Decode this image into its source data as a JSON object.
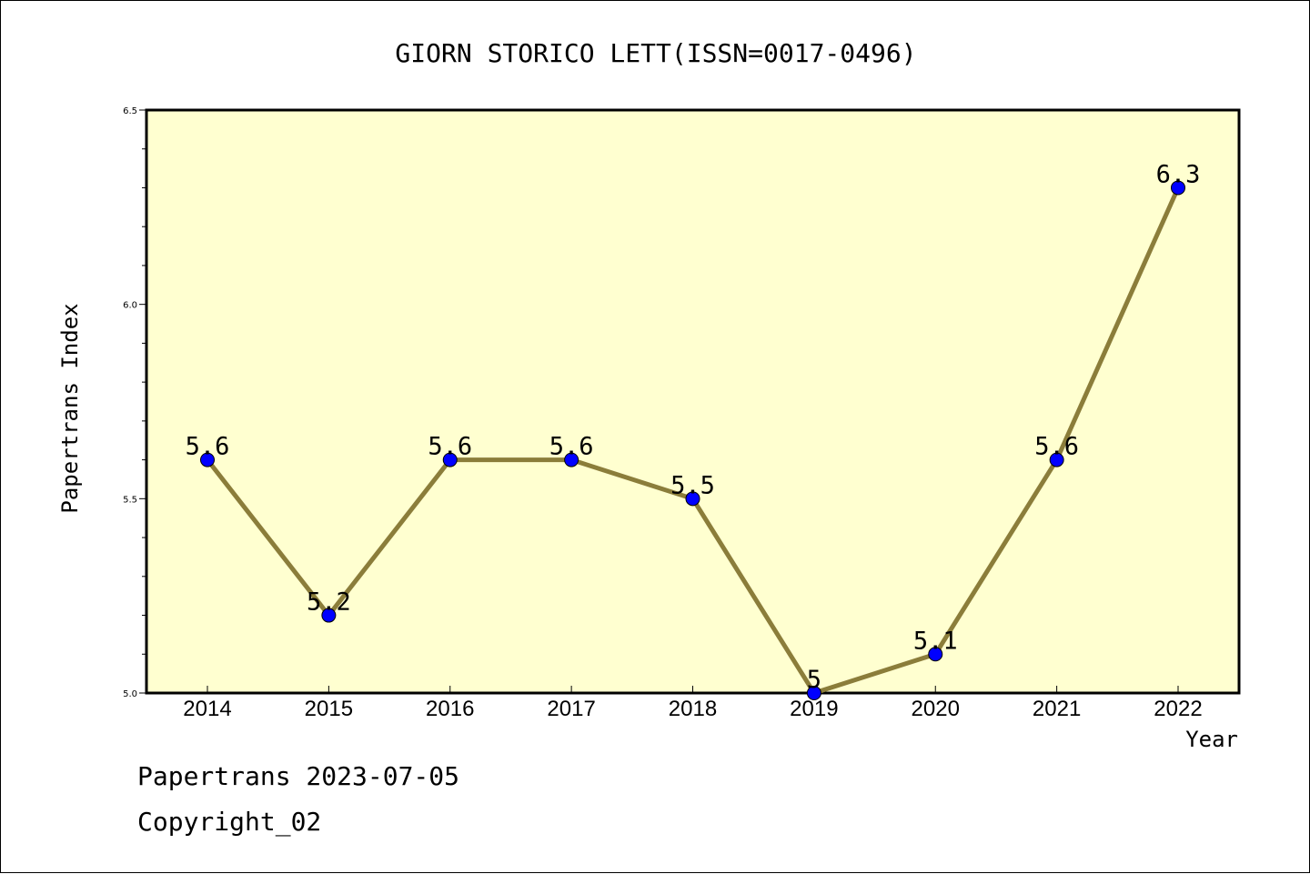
{
  "chart_data": {
    "type": "line",
    "title": "GIORN STORICO LETT(ISSN=0017-0496)",
    "xlabel": "Year",
    "ylabel": "Papertrans Index",
    "categories": [
      "2014",
      "2015",
      "2016",
      "2017",
      "2018",
      "2019",
      "2020",
      "2021",
      "2022"
    ],
    "values": [
      5.6,
      5.2,
      5.6,
      5.6,
      5.5,
      5.0,
      5.1,
      5.6,
      6.3
    ],
    "data_labels": [
      "5.6",
      "5.2",
      "5.6",
      "5.6",
      "5.5",
      "5",
      "5.1",
      "5.6",
      "6.3"
    ],
    "ylim": [
      5.0,
      6.5
    ],
    "yticks": [
      "5.0",
      "5.5",
      "6.0",
      "6.5"
    ],
    "grid": false,
    "colors": {
      "plot_background": "#ffffd0",
      "line": "#8b7d3a",
      "marker": "#0000ff"
    }
  },
  "footer": {
    "date_line": "Papertrans 2023-07-05",
    "copyright": "Copyright_02"
  }
}
